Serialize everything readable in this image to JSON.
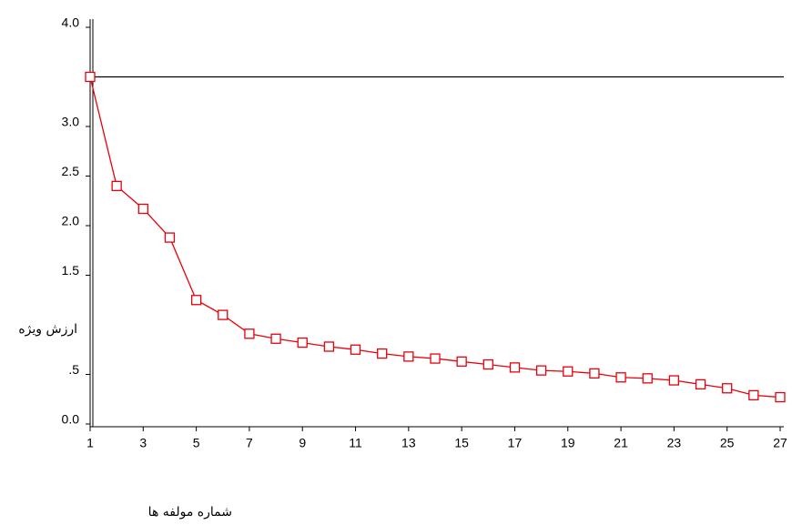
{
  "chart_data": {
    "type": "line",
    "xlabel": "شماره مولفه ها",
    "ylabel": "ارزش ویژه",
    "x": [
      1,
      2,
      3,
      4,
      5,
      6,
      7,
      8,
      9,
      10,
      11,
      12,
      13,
      14,
      15,
      16,
      17,
      18,
      19,
      20,
      21,
      22,
      23,
      24,
      25,
      26,
      27
    ],
    "series": [
      {
        "color": "#e8000b",
        "values": [
          3.5,
          2.4,
          2.17,
          1.88,
          1.25,
          1.1,
          0.91,
          0.86,
          0.82,
          0.78,
          0.75,
          0.71,
          0.68,
          0.66,
          0.63,
          0.6,
          0.57,
          0.54,
          0.53,
          0.51,
          0.47,
          0.46,
          0.44,
          0.4,
          0.36,
          0.29,
          0.27
        ]
      }
    ],
    "reference_line": 3.5,
    "xlim": [
      1,
      27
    ],
    "xticks": [
      1,
      3,
      5,
      7,
      9,
      11,
      13,
      15,
      17,
      19,
      21,
      23,
      25,
      27
    ],
    "ylim": [
      0,
      4
    ],
    "yticks": [
      {
        "value": 0,
        "label": "0.0"
      },
      {
        "value": 0.5,
        "label": ".5"
      },
      {
        "value": 1.5,
        "label": "1.5"
      },
      {
        "value": 2,
        "label": "2.0"
      },
      {
        "value": 2.5,
        "label": "2.5"
      },
      {
        "value": 3,
        "label": "3.0"
      },
      {
        "value": 4,
        "label": "4.0"
      }
    ]
  }
}
